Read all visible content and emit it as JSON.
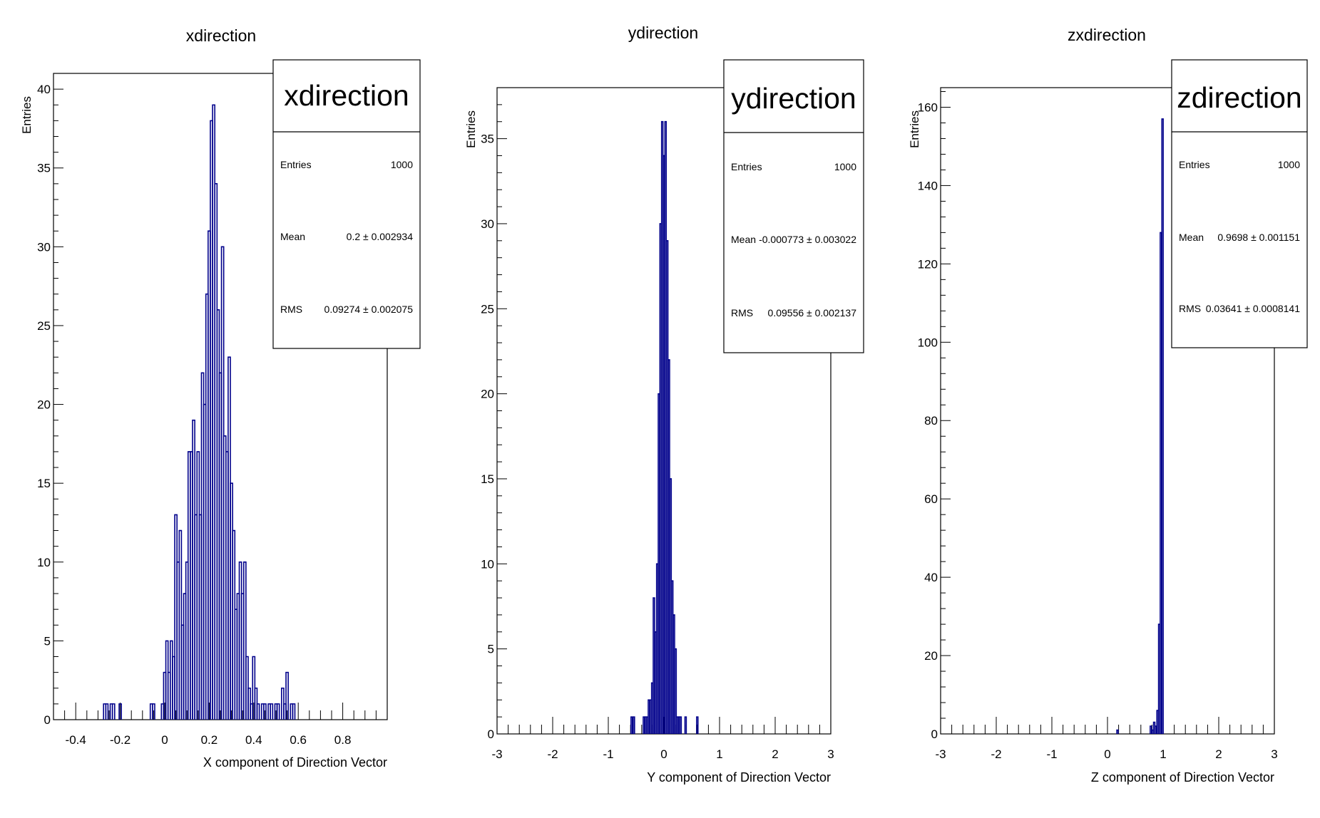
{
  "chart_data": [
    {
      "type": "histogram",
      "title": "xdirection",
      "xlabel": "X component of Direction Vector",
      "ylabel": "Entries",
      "xlim": [
        -0.5,
        1.0
      ],
      "ylim": [
        0,
        41
      ],
      "xticks": [
        -0.4,
        -0.2,
        0,
        0.2,
        0.4,
        0.6,
        0.8
      ],
      "xtick_labels": [
        "-0.4",
        "-0.2",
        "0",
        "0.2",
        "0.4",
        "0.6",
        "0.8"
      ],
      "yticks": [
        0,
        5,
        10,
        15,
        20,
        25,
        30,
        35,
        40
      ],
      "ytick_labels": [
        "0",
        "5",
        "10",
        "15",
        "20",
        "25",
        "30",
        "35",
        "40"
      ],
      "color": "#00008b",
      "bins": {
        "x": [
          -0.27,
          -0.26,
          -0.24,
          -0.23,
          -0.2,
          -0.06,
          -0.05,
          -0.01,
          0.0,
          0.01,
          0.02,
          0.03,
          0.04,
          0.05,
          0.06,
          0.07,
          0.08,
          0.09,
          0.1,
          0.11,
          0.12,
          0.13,
          0.14,
          0.15,
          0.16,
          0.17,
          0.18,
          0.19,
          0.2,
          0.21,
          0.22,
          0.23,
          0.24,
          0.25,
          0.26,
          0.27,
          0.28,
          0.29,
          0.3,
          0.31,
          0.32,
          0.33,
          0.34,
          0.35,
          0.36,
          0.37,
          0.38,
          0.39,
          0.4,
          0.41,
          0.42,
          0.44,
          0.45,
          0.47,
          0.48,
          0.5,
          0.51,
          0.53,
          0.54,
          0.55,
          0.57,
          0.58
        ],
        "y": [
          1,
          1,
          1,
          1,
          1,
          1,
          1,
          1,
          3,
          5,
          3,
          5,
          4,
          13,
          10,
          12,
          6,
          8,
          10,
          17,
          17,
          19,
          13,
          17,
          13,
          22,
          20,
          27,
          31,
          38,
          39,
          34,
          26,
          22,
          30,
          18,
          17,
          23,
          15,
          12,
          7,
          8,
          10,
          8,
          10,
          4,
          2,
          1,
          4,
          2,
          1,
          1,
          1,
          1,
          1,
          1,
          1,
          2,
          1,
          3,
          1,
          1
        ]
      },
      "stats": {
        "title": "xdirection",
        "rows": [
          {
            "label": "Entries",
            "value": "1000"
          },
          {
            "label": "Mean",
            "value": "0.2 ± 0.002934"
          },
          {
            "label": "RMS",
            "value": "0.09274 ± 0.002075"
          }
        ]
      }
    },
    {
      "type": "histogram",
      "title": "ydirection",
      "xlabel": "Y component of Direction Vector",
      "ylabel": "Entries",
      "xlim": [
        -3,
        3
      ],
      "ylim": [
        0,
        38
      ],
      "xticks": [
        -3,
        -2,
        -1,
        0,
        1,
        2,
        3
      ],
      "xtick_labels": [
        "-3",
        "-2",
        "-1",
        "0",
        "1",
        "2",
        "3"
      ],
      "yticks": [
        0,
        5,
        10,
        15,
        20,
        25,
        30,
        35
      ],
      "ytick_labels": [
        "0",
        "5",
        "10",
        "15",
        "20",
        "25",
        "30",
        "35"
      ],
      "color": "#00008b",
      "bins": {
        "x": [
          -0.58,
          -0.54,
          -0.36,
          -0.33,
          -0.3,
          -0.27,
          -0.24,
          -0.21,
          -0.18,
          -0.15,
          -0.12,
          -0.09,
          -0.06,
          -0.03,
          0.0,
          0.03,
          0.06,
          0.09,
          0.12,
          0.15,
          0.18,
          0.21,
          0.24,
          0.27,
          0.3,
          0.39,
          0.6
        ],
        "y": [
          1,
          1,
          1,
          1,
          1,
          2,
          2,
          3,
          8,
          6,
          10,
          20,
          30,
          36,
          34,
          36,
          29,
          22,
          15,
          9,
          7,
          5,
          1,
          1,
          1,
          1,
          1
        ]
      },
      "stats": {
        "title": "ydirection",
        "rows": [
          {
            "label": "Entries",
            "value": "1000"
          },
          {
            "label": "Mean",
            "value": "-0.000773 ± 0.003022"
          },
          {
            "label": "RMS",
            "value": "0.09556 ± 0.002137"
          }
        ]
      }
    },
    {
      "type": "histogram",
      "title": "zxdirection",
      "xlabel": "Z component of Direction Vector",
      "ylabel": "Entries",
      "xlim": [
        -3,
        3
      ],
      "ylim": [
        0,
        165
      ],
      "xticks": [
        -3,
        -2,
        -1,
        0,
        1,
        2,
        3
      ],
      "xtick_labels": [
        "-3",
        "-2",
        "-1",
        "0",
        "1",
        "2",
        "3"
      ],
      "yticks": [
        0,
        20,
        40,
        60,
        80,
        100,
        120,
        140,
        160
      ],
      "ytick_labels": [
        "0",
        "20",
        "40",
        "60",
        "80",
        "100",
        "120",
        "140",
        "160"
      ],
      "color": "#00008b",
      "bins": {
        "x": [
          0.18,
          0.78,
          0.81,
          0.84,
          0.87,
          0.9,
          0.93,
          0.96,
          0.99
        ],
        "y": [
          1,
          2,
          1,
          3,
          2,
          6,
          28,
          128,
          157
        ]
      },
      "stats": {
        "title": "zdirection",
        "rows": [
          {
            "label": "Entries",
            "value": "1000"
          },
          {
            "label": "Mean",
            "value": "0.9698 ± 0.001151"
          },
          {
            "label": "RMS",
            "value": "0.03641 ± 0.0008141"
          }
        ]
      }
    }
  ]
}
